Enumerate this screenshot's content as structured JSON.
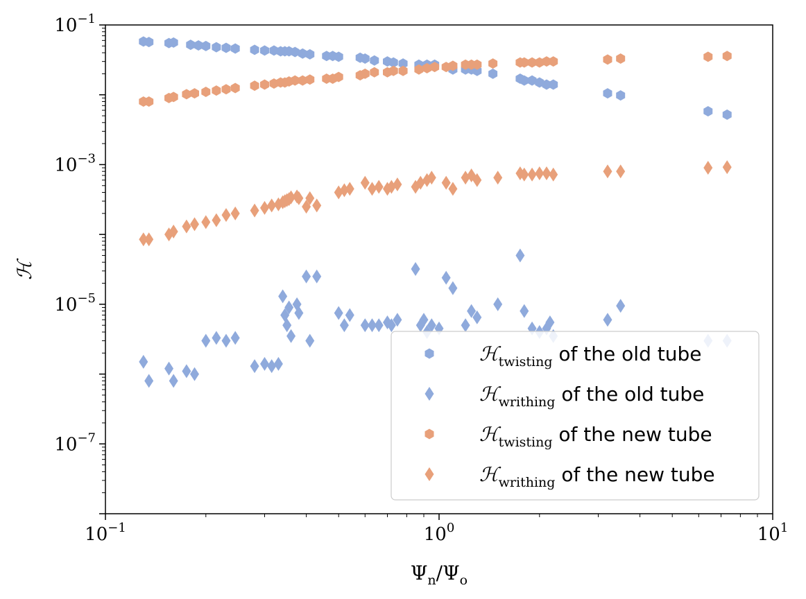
{
  "chart_data": {
    "type": "scatter",
    "xlabel": {
      "base": "Ψ",
      "sub1": "n",
      "mid": "/Ψ",
      "sub2": "o"
    },
    "ylabel": "ℋ",
    "x_scale": "log",
    "y_scale": "log",
    "xlim": [
      0.1,
      10
    ],
    "ylim": [
      1e-08,
      0.1
    ],
    "grid": false,
    "legend_placement": "lower-right",
    "x_ticks": [
      {
        "value": 0.1,
        "base": "10",
        "exp": "−1"
      },
      {
        "value": 1,
        "base": "10",
        "exp": "0"
      },
      {
        "value": 10,
        "base": "10",
        "exp": "1"
      }
    ],
    "y_ticks": [
      {
        "value": 1e-07,
        "base": "10",
        "exp": "−7"
      },
      {
        "value": 1e-05,
        "base": "10",
        "exp": "−5"
      },
      {
        "value": 0.001,
        "base": "10",
        "exp": "−3"
      },
      {
        "value": 0.1,
        "base": "10",
        "exp": "−1"
      }
    ],
    "series": [
      {
        "sym": "ℋ",
        "sub": "twisting",
        "suffix": " of the old tube",
        "marker": "hexagon",
        "color": "#8faadc",
        "x": [
          0.13,
          0.135,
          0.155,
          0.16,
          0.18,
          0.19,
          0.2,
          0.215,
          0.23,
          0.245,
          0.28,
          0.3,
          0.32,
          0.335,
          0.345,
          0.355,
          0.37,
          0.39,
          0.41,
          0.46,
          0.48,
          0.5,
          0.58,
          0.6,
          0.64,
          0.7,
          0.73,
          0.78,
          0.87,
          0.92,
          0.97,
          1.1,
          1.2,
          1.25,
          1.3,
          1.45,
          1.75,
          1.8,
          1.9,
          2.0,
          2.1,
          2.2,
          3.2,
          3.5,
          6.4,
          7.3
        ],
        "y": [
          0.058,
          0.057,
          0.055,
          0.056,
          0.052,
          0.051,
          0.05,
          0.048,
          0.047,
          0.046,
          0.044,
          0.043,
          0.043,
          0.042,
          0.042,
          0.042,
          0.041,
          0.039,
          0.038,
          0.036,
          0.036,
          0.035,
          0.034,
          0.033,
          0.031,
          0.03,
          0.029,
          0.028,
          0.027,
          0.027,
          0.027,
          0.023,
          0.023,
          0.023,
          0.022,
          0.02,
          0.017,
          0.016,
          0.016,
          0.015,
          0.014,
          0.014,
          0.0105,
          0.0098,
          0.0058,
          0.0052
        ]
      },
      {
        "sym": "ℋ",
        "sub": "writhing",
        "suffix": " of the old tube",
        "marker": "diamond",
        "color": "#8faadc",
        "x": [
          0.13,
          0.135,
          0.155,
          0.16,
          0.175,
          0.185,
          0.2,
          0.215,
          0.23,
          0.245,
          0.28,
          0.3,
          0.315,
          0.33,
          0.34,
          0.345,
          0.35,
          0.355,
          0.36,
          0.375,
          0.38,
          0.4,
          0.41,
          0.43,
          0.5,
          0.52,
          0.54,
          0.6,
          0.63,
          0.66,
          0.7,
          0.72,
          0.75,
          0.85,
          0.88,
          0.9,
          0.92,
          0.95,
          1.0,
          1.05,
          1.1,
          1.2,
          1.25,
          1.3,
          1.5,
          1.75,
          1.8,
          1.9,
          2.0,
          2.1,
          2.15,
          2.2,
          3.2,
          3.5,
          6.4,
          7.3
        ],
        "y": [
          1.5e-06,
          8e-07,
          1.2e-06,
          8e-07,
          1.1e-06,
          1e-06,
          3e-06,
          3.3e-06,
          3e-06,
          3.3e-06,
          1.3e-06,
          1.4e-06,
          1.3e-06,
          1.4e-06,
          1.3e-05,
          7e-06,
          5e-06,
          9e-06,
          3.5e-06,
          1e-05,
          7.5e-06,
          2.5e-05,
          3e-06,
          2.5e-05,
          7.5e-06,
          5e-06,
          7e-06,
          5e-06,
          5e-06,
          5e-06,
          5.5e-06,
          5e-06,
          6e-06,
          3.2e-05,
          5e-06,
          6e-06,
          4e-06,
          5e-06,
          4.5e-06,
          2.4e-05,
          1.7e-05,
          5e-06,
          8e-06,
          6.5e-06,
          1e-05,
          5e-05,
          8e-06,
          4.5e-06,
          4e-06,
          4.5e-06,
          5.5e-06,
          3.5e-06,
          6e-06,
          9.5e-06,
          3e-06,
          3e-06
        ]
      },
      {
        "sym": "ℋ",
        "sub": "twisting",
        "suffix": " of the new tube",
        "marker": "hexagon",
        "color": "#e8a07a",
        "x": [
          0.13,
          0.135,
          0.155,
          0.16,
          0.175,
          0.185,
          0.2,
          0.215,
          0.23,
          0.245,
          0.28,
          0.3,
          0.32,
          0.335,
          0.345,
          0.355,
          0.37,
          0.39,
          0.41,
          0.46,
          0.48,
          0.5,
          0.58,
          0.6,
          0.64,
          0.7,
          0.73,
          0.78,
          0.87,
          0.92,
          0.97,
          1.05,
          1.1,
          1.2,
          1.25,
          1.3,
          1.45,
          1.75,
          1.8,
          1.9,
          2.0,
          2.1,
          2.2,
          3.2,
          3.5,
          6.4,
          7.3
        ],
        "y": [
          0.008,
          0.008,
          0.009,
          0.0093,
          0.0102,
          0.0105,
          0.011,
          0.0115,
          0.012,
          0.0125,
          0.0135,
          0.014,
          0.0145,
          0.015,
          0.015,
          0.0155,
          0.016,
          0.016,
          0.0165,
          0.017,
          0.017,
          0.018,
          0.019,
          0.02,
          0.021,
          0.021,
          0.022,
          0.022,
          0.023,
          0.024,
          0.025,
          0.025,
          0.026,
          0.027,
          0.027,
          0.027,
          0.028,
          0.029,
          0.029,
          0.029,
          0.029,
          0.03,
          0.03,
          0.032,
          0.033,
          0.035,
          0.036
        ]
      },
      {
        "sym": "ℋ",
        "sub": "writhing",
        "suffix": " of the new tube",
        "marker": "diamond",
        "color": "#e8a07a",
        "x": [
          0.13,
          0.135,
          0.155,
          0.16,
          0.175,
          0.185,
          0.2,
          0.215,
          0.23,
          0.245,
          0.28,
          0.3,
          0.315,
          0.33,
          0.34,
          0.345,
          0.35,
          0.355,
          0.36,
          0.375,
          0.38,
          0.4,
          0.41,
          0.43,
          0.5,
          0.52,
          0.54,
          0.6,
          0.63,
          0.66,
          0.7,
          0.72,
          0.75,
          0.85,
          0.88,
          0.92,
          0.95,
          1.05,
          1.1,
          1.2,
          1.25,
          1.3,
          1.5,
          1.75,
          1.8,
          1.9,
          2.0,
          2.1,
          2.2,
          3.2,
          3.5,
          6.4,
          7.3
        ],
        "y": [
          8.5e-05,
          8.5e-05,
          0.0001,
          0.00011,
          0.00013,
          0.00014,
          0.00015,
          0.00016,
          0.00019,
          0.0002,
          0.00022,
          0.00024,
          0.00026,
          0.00027,
          0.00029,
          0.0003,
          0.00031,
          0.00032,
          0.00034,
          0.00035,
          0.00033,
          0.00025,
          0.00033,
          0.00026,
          0.0004,
          0.00043,
          0.00045,
          0.00055,
          0.00045,
          0.00048,
          0.00045,
          0.00048,
          0.00052,
          0.00048,
          0.00055,
          0.0006,
          0.00065,
          0.00055,
          0.00045,
          0.00065,
          0.0007,
          0.0006,
          0.00065,
          0.00075,
          0.00072,
          0.00072,
          0.00075,
          0.00075,
          0.00072,
          0.0008,
          0.0008,
          0.0009,
          0.00092
        ]
      }
    ]
  }
}
